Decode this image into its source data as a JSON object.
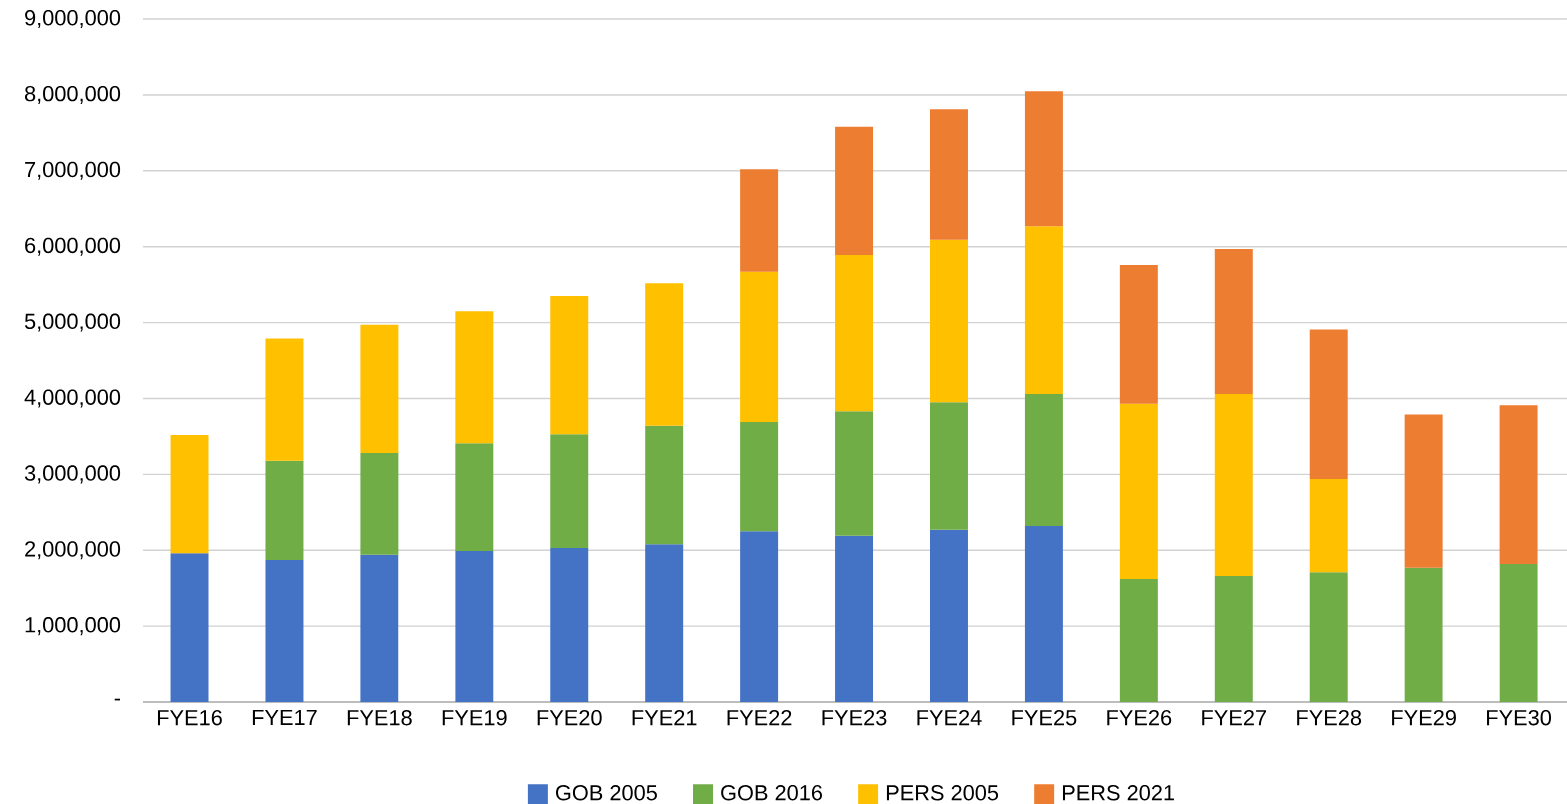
{
  "chart_data": {
    "type": "bar",
    "stacked": true,
    "categories": [
      "FYE16",
      "FYE17",
      "FYE18",
      "FYE19",
      "FYE20",
      "FYE21",
      "FYE22",
      "FYE23",
      "FYE24",
      "FYE25",
      "FYE26",
      "FYE27",
      "FYE28",
      "FYE29",
      "FYE30"
    ],
    "series": [
      {
        "name": "GOB 2005",
        "color": "#4472c4",
        "values": [
          1960000,
          1870000,
          1940000,
          1990000,
          2030000,
          2080000,
          2250000,
          2190000,
          2270000,
          2320000,
          null,
          null,
          null,
          null,
          null
        ]
      },
      {
        "name": "GOB 2016",
        "color": "#70ad47",
        "values": [
          null,
          1310000,
          1340000,
          1420000,
          1500000,
          1560000,
          1440000,
          1640000,
          1680000,
          1740000,
          1620000,
          1660000,
          1710000,
          1770000,
          1820000
        ]
      },
      {
        "name": "PERS 2005",
        "color": "#ffc000",
        "values": [
          1560000,
          1610000,
          1690000,
          1740000,
          1820000,
          1880000,
          1980000,
          2060000,
          2140000,
          2210000,
          2310000,
          2400000,
          1230000,
          null,
          null
        ]
      },
      {
        "name": "PERS 2021",
        "color": "#ed7d31",
        "values": [
          null,
          null,
          null,
          null,
          null,
          null,
          1350000,
          1690000,
          1720000,
          1780000,
          1830000,
          1910000,
          1970000,
          2020000,
          2090000
        ]
      }
    ],
    "ylim": [
      0,
      9000000
    ],
    "yticks": [
      {
        "value": 0,
        "label": "-"
      },
      {
        "value": 1000000,
        "label": "1,000,000"
      },
      {
        "value": 2000000,
        "label": "2,000,000"
      },
      {
        "value": 3000000,
        "label": "3,000,000"
      },
      {
        "value": 4000000,
        "label": "4,000,000"
      },
      {
        "value": 5000000,
        "label": "5,000,000"
      },
      {
        "value": 6000000,
        "label": "6,000,000"
      },
      {
        "value": 7000000,
        "label": "7,000,000"
      },
      {
        "value": 8000000,
        "label": "8,000,000"
      },
      {
        "value": 9000000,
        "label": "9,000,000"
      }
    ],
    "grid": "y",
    "legend": "bottom"
  }
}
